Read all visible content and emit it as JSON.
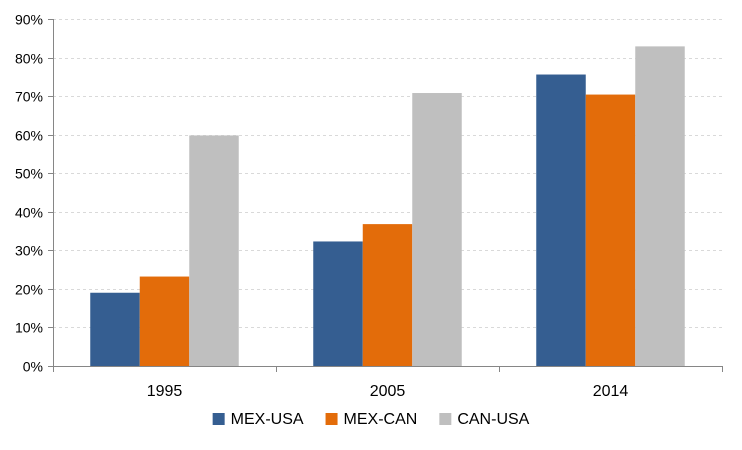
{
  "chart_data": {
    "type": "bar",
    "title": "",
    "xlabel": "",
    "ylabel": "",
    "categories": [
      "1995",
      "2005",
      "2014"
    ],
    "series": [
      {
        "name": "MEX-USA",
        "color": "#355E91",
        "values": [
          19,
          32.3,
          75.6
        ]
      },
      {
        "name": "MEX-CAN",
        "color": "#E36C0A",
        "values": [
          23.2,
          36.8,
          70.4
        ]
      },
      {
        "name": "CAN-USA",
        "color": "#BFBFBF",
        "values": [
          59.8,
          70.8,
          82.9
        ]
      }
    ],
    "ylim": [
      0,
      90
    ],
    "yticks": [
      0,
      10,
      20,
      30,
      40,
      50,
      60,
      70,
      80,
      90
    ],
    "ytick_labels": [
      "0%",
      "10%",
      "20%",
      "30%",
      "40%",
      "50%",
      "60%",
      "70%",
      "80%",
      "90%"
    ],
    "grid": true,
    "legend_position": "bottom"
  }
}
